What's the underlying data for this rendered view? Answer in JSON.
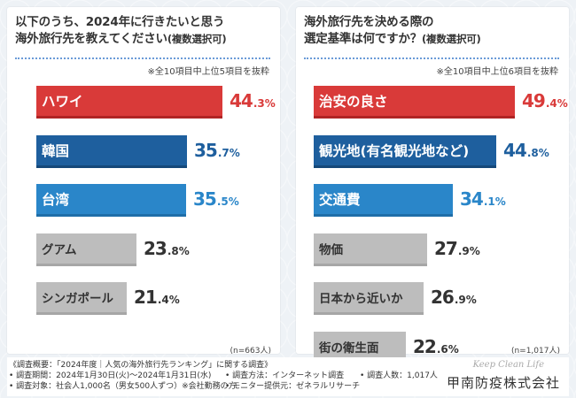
{
  "left_panel": {
    "title_line1": "以下のうち、2024年に行きたいと思う",
    "title_line2_main": "海外旅行先を教えてください",
    "title_line2_sub": "(複数選択可)",
    "note": "※全10項目中上位5項目を抜粋",
    "n_label": "(n=663人)"
  },
  "right_panel": {
    "title_line1": "海外旅行先を決める際の",
    "title_line2_main": "選定基準は何ですか？",
    "title_line2_sub": "(複数選択可)",
    "note": "※全10項目中上位6項目を抜粋",
    "n_label": "(n=1,017人)"
  },
  "chart_data": [
    {
      "type": "bar",
      "orientation": "horizontal",
      "title": "以下のうち、2024年に行きたいと思う海外旅行先を教えてください(複数選択可)",
      "unit": "%",
      "xlim": [
        0,
        60
      ],
      "categories": [
        "ハワイ",
        "韓国",
        "台湾",
        "グアム",
        "シンガポール"
      ],
      "values": [
        44.3,
        35.7,
        35.5,
        23.8,
        21.4
      ],
      "value_int": [
        "44",
        "35",
        "35",
        "23",
        "21"
      ],
      "value_dec": [
        ".3%",
        ".7%",
        ".5%",
        ".8%",
        ".4%"
      ],
      "colors": [
        "#d93a39",
        "#1e5f9e",
        "#2a86c9",
        "#bdbdbd",
        "#bdbdbd"
      ]
    },
    {
      "type": "bar",
      "orientation": "horizontal",
      "title": "海外旅行先を決める際の選定基準は何ですか？(複数選択可)",
      "unit": "%",
      "xlim": [
        0,
        60
      ],
      "categories": [
        "治安の良さ",
        "観光地(有名観光地など)",
        "交通費",
        "物価",
        "日本から近いか",
        "街の衛生面"
      ],
      "values": [
        49.4,
        44.8,
        34.1,
        27.9,
        26.9,
        22.6
      ],
      "value_int": [
        "49",
        "44",
        "34",
        "27",
        "26",
        "22"
      ],
      "value_dec": [
        ".4%",
        ".8%",
        ".1%",
        ".9%",
        ".9%",
        ".6%"
      ],
      "colors": [
        "#d93a39",
        "#1e5f9e",
        "#2a86c9",
        "#bdbdbd",
        "#bdbdbd",
        "#bdbdbd"
      ]
    }
  ],
  "footer": {
    "line1": "《調査概要：「2024年度｜人気の海外旅行先ランキング」に関する調査》",
    "period": "• 調査期間：2024年1月30日(火)〜2024年1月31日(水)",
    "method": "• 調査方法：インターネット調査",
    "count": "• 調査人数：1,017人",
    "target": "• 調査対象：社会人1,000名（男女500人ずつ）※会社勤務の方",
    "provider": "• モニター提供元：ゼネラルリサーチ",
    "brand_script": "Keep Clean Life",
    "brand_name": "甲南防疫株式会社"
  }
}
